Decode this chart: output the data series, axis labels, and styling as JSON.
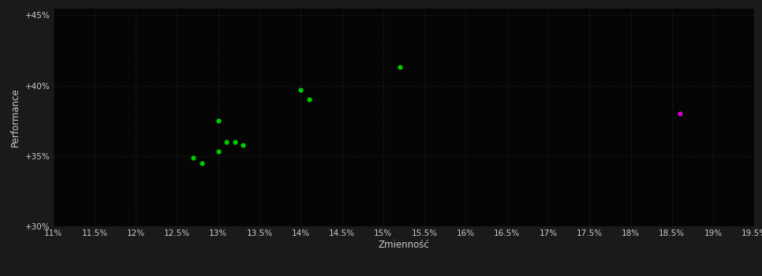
{
  "background_color": "#1a1a1a",
  "plot_bg_color": "#050505",
  "grid_color": "#2a2a2a",
  "xlabel": "Zmienność",
  "ylabel": "Performance",
  "xlabel_color": "#cccccc",
  "ylabel_color": "#cccccc",
  "tick_color": "#cccccc",
  "xlim": [
    0.11,
    0.195
  ],
  "ylim": [
    0.3,
    0.455
  ],
  "xticks": [
    0.11,
    0.115,
    0.12,
    0.125,
    0.13,
    0.135,
    0.14,
    0.145,
    0.15,
    0.155,
    0.16,
    0.165,
    0.17,
    0.175,
    0.18,
    0.185,
    0.19,
    0.195
  ],
  "yticks": [
    0.3,
    0.35,
    0.4,
    0.45
  ],
  "green_points": [
    [
      0.127,
      0.349
    ],
    [
      0.128,
      0.345
    ],
    [
      0.13,
      0.353
    ],
    [
      0.131,
      0.36
    ],
    [
      0.132,
      0.36
    ],
    [
      0.133,
      0.358
    ],
    [
      0.13,
      0.375
    ],
    [
      0.14,
      0.397
    ],
    [
      0.141,
      0.39
    ],
    [
      0.152,
      0.413
    ]
  ],
  "magenta_points": [
    [
      0.186,
      0.38
    ]
  ],
  "green_color": "#00cc00",
  "magenta_color": "#cc00cc",
  "marker_size": 20,
  "font_size_ticks": 7.5,
  "font_size_labels": 8.5
}
